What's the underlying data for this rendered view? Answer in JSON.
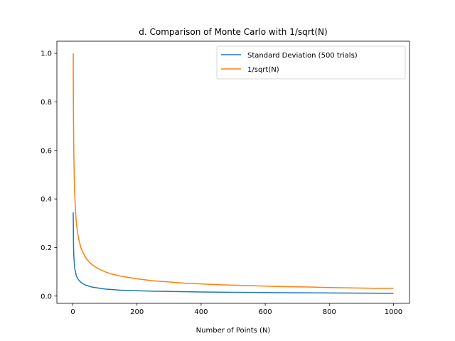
{
  "chart_data": {
    "type": "line",
    "title": "d. Comparison of Monte Carlo with 1/sqrt(N)",
    "xlabel": "Number of Points (N)",
    "ylabel": "",
    "xlim": [
      -50,
      1050
    ],
    "ylim": [
      -0.03,
      1.05
    ],
    "x_ticks": [
      0,
      200,
      400,
      600,
      800,
      1000
    ],
    "x_tick_labels": [
      "0",
      "200",
      "400",
      "600",
      "800",
      "1000"
    ],
    "y_ticks": [
      0.0,
      0.2,
      0.4,
      0.6,
      0.8,
      1.0
    ],
    "y_tick_labels": [
      "0.0",
      "0.2",
      "0.4",
      "0.6",
      "0.8",
      "1.0"
    ],
    "grid": false,
    "legend_position": "top-right",
    "series": [
      {
        "name": "Standard Deviation (500 trials)",
        "color": "#1f77b4",
        "x": [
          1,
          2,
          3,
          4,
          5,
          6,
          8,
          10,
          12,
          15,
          20,
          25,
          30,
          40,
          50,
          60,
          80,
          100,
          120,
          150,
          200,
          250,
          300,
          350,
          400,
          450,
          500,
          550,
          600,
          650,
          700,
          750,
          800,
          850,
          900,
          950,
          1000
        ],
        "values": [
          0.345,
          0.205,
          0.16,
          0.145,
          0.125,
          0.112,
          0.1,
          0.088,
          0.08,
          0.072,
          0.063,
          0.057,
          0.052,
          0.045,
          0.041,
          0.037,
          0.033,
          0.029,
          0.027,
          0.024,
          0.022,
          0.02,
          0.019,
          0.018,
          0.017,
          0.016,
          0.0155,
          0.015,
          0.0145,
          0.014,
          0.0135,
          0.013,
          0.0128,
          0.0125,
          0.012,
          0.0118,
          0.0115
        ]
      },
      {
        "name": "1/sqrt(N)",
        "color": "#ff7f0e",
        "x": [
          1,
          1.2,
          1.5,
          2,
          2.5,
          3,
          4,
          5,
          6,
          8,
          10,
          12,
          15,
          20,
          25,
          30,
          40,
          50,
          60,
          80,
          100,
          120,
          150,
          200,
          250,
          300,
          350,
          400,
          450,
          500,
          550,
          600,
          650,
          700,
          750,
          800,
          850,
          900,
          950,
          1000
        ],
        "values": [
          1.0,
          0.913,
          0.816,
          0.707,
          0.632,
          0.577,
          0.5,
          0.447,
          0.408,
          0.354,
          0.316,
          0.289,
          0.258,
          0.224,
          0.2,
          0.183,
          0.158,
          0.141,
          0.129,
          0.112,
          0.1,
          0.091,
          0.082,
          0.071,
          0.063,
          0.058,
          0.053,
          0.05,
          0.047,
          0.045,
          0.043,
          0.041,
          0.039,
          0.038,
          0.037,
          0.035,
          0.034,
          0.033,
          0.032,
          0.032
        ]
      }
    ]
  }
}
